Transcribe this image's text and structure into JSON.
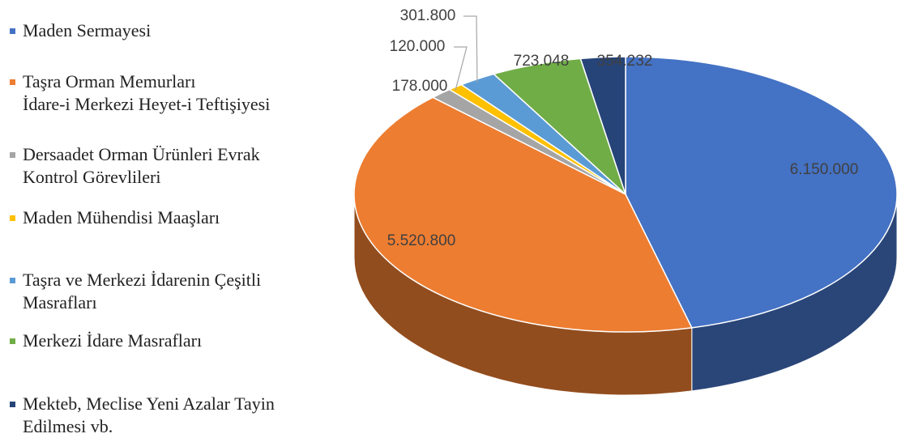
{
  "chart_data": {
    "type": "pie",
    "categories": [
      "Maden Sermayesi",
      "Taşra Orman Memurları\nİdare-i Merkezi Heyet-i Teftişiyesi",
      "Dersaadet Orman Ürünleri Evrak\nKontrol Görevlileri",
      "Maden Mühendisi Maaşları",
      "Taşra ve Merkezi İdarenin Çeşitli\nMasrafları",
      "Merkezi İdare Masrafları",
      "Mekteb, Meclise Yeni Azalar Tayin\nEdilmesi vb."
    ],
    "values": [
      6150000,
      5520800,
      178000,
      120000,
      301800,
      723048,
      354232
    ],
    "value_labels": [
      "6.150.000",
      "5.520.800",
      "178.000",
      "120.000",
      "301.800",
      "723.048",
      "354.232"
    ],
    "colors": [
      "#4472c4",
      "#ed7d31",
      "#a5a5a5",
      "#ffc000",
      "#5b9bd5",
      "#70ad47",
      "#264478"
    ],
    "legend": "left"
  }
}
